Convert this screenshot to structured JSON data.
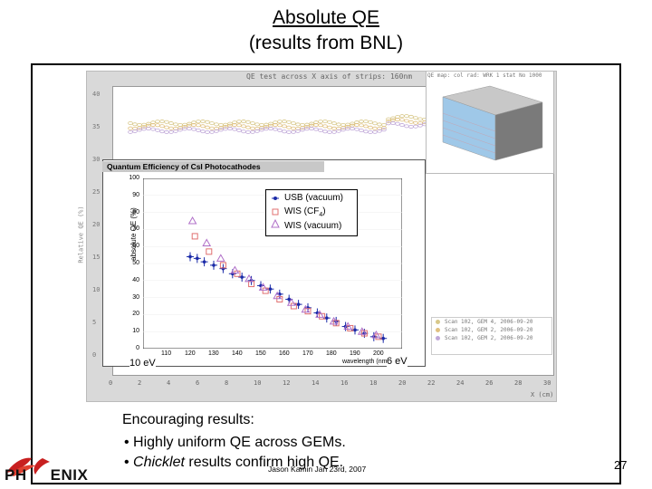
{
  "slide": {
    "title_line1": "Absolute QE",
    "title_line2": "(results from BNL)",
    "page_number": "27",
    "footer": "Jason Kamin Jan 23rd, 2007",
    "logo_text_left": "PH",
    "logo_text_right": "ENIX"
  },
  "background_plot": {
    "title": "QE test across X axis of strips: 160nm",
    "y_ticks": [
      "40",
      "35",
      "30",
      "25",
      "20",
      "15",
      "10",
      "5",
      "0"
    ],
    "x_ticks": [
      "0",
      "2",
      "4",
      "6",
      "8",
      "10",
      "12",
      "14",
      "16",
      "18",
      "20",
      "22",
      "24",
      "26",
      "28",
      "30"
    ],
    "x_label": "X (cm)",
    "y_label": "Relative QE (%)",
    "inset_title": "QE map: col rad: WRK 1 stat No 1000",
    "legend": [
      {
        "label": "Scan 102, GEM 4, 2006-09-20",
        "color": "#d8c88a"
      },
      {
        "label": "Scan 102, GEM 2, 2006-09-20",
        "color": "#e0c080"
      },
      {
        "label": "Scan 102, GEM 2, 2006-09-20",
        "color": "#c0a8d8"
      }
    ]
  },
  "qe_chart": {
    "title": "Quantum Efficiency of CsI Photocathodes",
    "ylabel": "absolute QE (%)",
    "xlabel": "wavelength (nm)",
    "y_ticks": [
      "100",
      "90",
      "80",
      "70",
      "60",
      "50",
      "40",
      "30",
      "20",
      "10",
      "0"
    ],
    "x_ticks": [
      "110",
      "120",
      "130",
      "140",
      "150",
      "160",
      "170",
      "180",
      "190",
      "200"
    ],
    "legend": {
      "usb": "USB (vacuum)",
      "wis_cf4_prefix": "WIS (CF",
      "wis_cf4_sub": "4",
      "wis_cf4_suffix": ")",
      "wis_vac": "WIS (vacuum)"
    },
    "annotation_left": "10 eV",
    "annotation_right": "6 eV"
  },
  "chart_data": {
    "type": "scatter",
    "title": "Quantum Efficiency of CsI Photocathodes",
    "xlabel": "wavelength (nm)",
    "ylabel": "absolute QE (%)",
    "xlim": [
      100,
      210
    ],
    "ylim": [
      0,
      100
    ],
    "series": [
      {
        "name": "USB (vacuum)",
        "color": "#1a2aa8",
        "x": [
          120,
          123,
          126,
          130,
          134,
          138,
          142,
          146,
          150,
          154,
          158,
          162,
          166,
          170,
          174,
          178,
          182,
          186,
          190,
          194,
          198,
          202
        ],
        "y": [
          54,
          53,
          51,
          49,
          47,
          44,
          42,
          40,
          37,
          35,
          32,
          29,
          26,
          24,
          21,
          18,
          16,
          13,
          11,
          9,
          7,
          6
        ]
      },
      {
        "name": "WIS (CF4)",
        "color": "#e07070",
        "x": [
          122,
          128,
          134,
          140,
          146,
          152,
          158,
          164,
          170,
          176,
          182,
          188,
          194,
          200
        ],
        "y": [
          66,
          57,
          49,
          44,
          38,
          34,
          29,
          25,
          22,
          19,
          15,
          12,
          9,
          7
        ]
      },
      {
        "name": "WIS (vacuum)",
        "color": "#b070c8",
        "x": [
          121,
          127,
          133,
          139,
          145,
          151,
          157,
          163,
          169,
          175,
          181,
          187,
          193,
          199
        ],
        "y": [
          75,
          62,
          53,
          46,
          41,
          36,
          31,
          27,
          23,
          20,
          16,
          13,
          10,
          8
        ]
      }
    ],
    "legend_position": "top-right"
  },
  "bullets": {
    "heading": "Encouraging results:",
    "item1": "• Highly uniform QE across GEMs.",
    "item2_prefix": "• ",
    "item2_italic": "Chicklet",
    "item2_rest": " results confirm high QE."
  }
}
